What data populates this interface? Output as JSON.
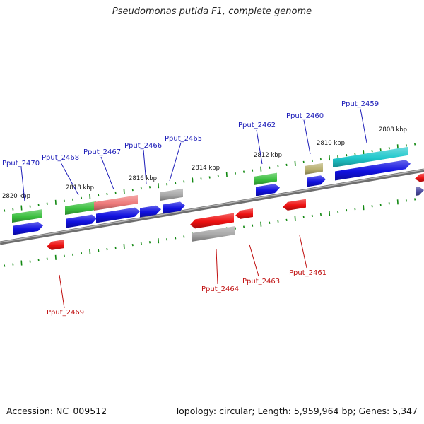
{
  "title": "Pseudomonas putida F1, complete genome",
  "footer": {
    "accession_label": "Accession: NC_009512",
    "summary": "Topology: circular; Length: 5,959,964 bp; Genes: 5,347"
  },
  "colors": {
    "backbone": "#8a8a8a",
    "cds_forward": "#1010e0",
    "cds_reverse": "#ee1111",
    "gene_green": "#3cc040",
    "gene_pink": "#ee7a7a",
    "gene_grey": "#a8a8a8",
    "gene_olive": "#b8b070",
    "gene_cyan": "#20c8cc",
    "tick": "#118811",
    "label_forward": "#1a1ab8",
    "label_reverse": "#c01010"
  },
  "kbp_labels": [
    {
      "kbp": 2820,
      "text": "2820 kbp"
    },
    {
      "kbp": 2818,
      "text": "2818 kbp"
    },
    {
      "kbp": 2816,
      "text": "2816 kbp"
    },
    {
      "kbp": 2814,
      "text": "2814 kbp"
    },
    {
      "kbp": 2812,
      "text": "2812 kbp"
    },
    {
      "kbp": 2810,
      "text": "2810 kbp"
    },
    {
      "kbp": 2808,
      "text": "2808 kbp"
    }
  ],
  "genes_forward": [
    {
      "id": "Pput_2470"
    },
    {
      "id": "Pput_2468"
    },
    {
      "id": "Pput_2467"
    },
    {
      "id": "Pput_2466"
    },
    {
      "id": "Pput_2465"
    },
    {
      "id": "Pput_2462"
    },
    {
      "id": "Pput_2460"
    },
    {
      "id": "Pput_2459"
    }
  ],
  "genes_reverse": [
    {
      "id": "Pput_2469"
    },
    {
      "id": "Pput_2464"
    },
    {
      "id": "Pput_2463"
    },
    {
      "id": "Pput_2461"
    }
  ]
}
